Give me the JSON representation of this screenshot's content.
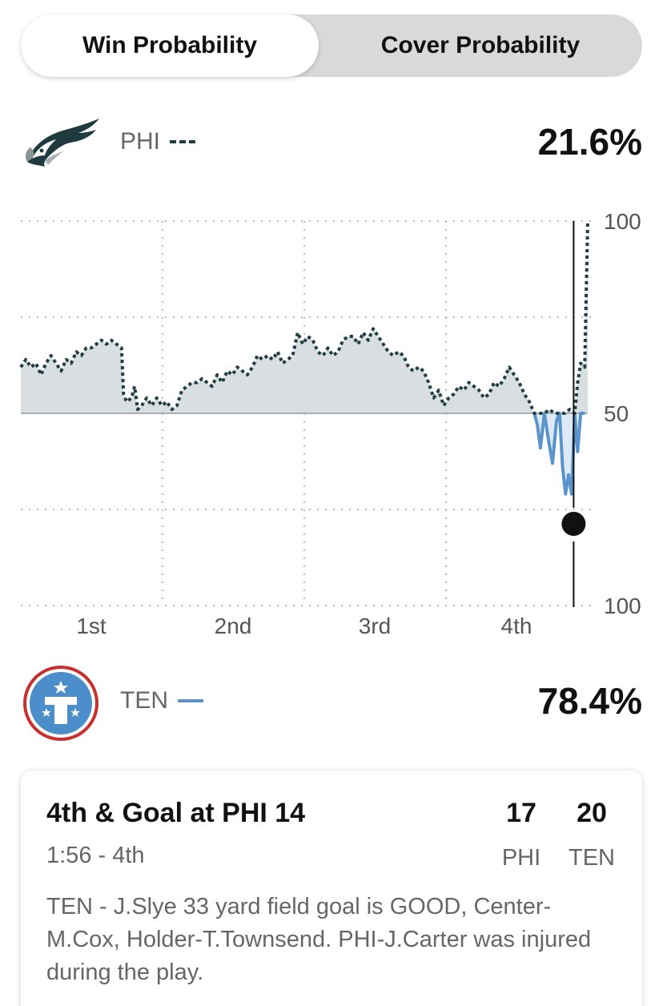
{
  "tabs": {
    "win_probability": "Win Probability",
    "cover_probability": "Cover Probability"
  },
  "teams": {
    "phi": {
      "abbr": "PHI",
      "win_pct": "21.6%",
      "line_style": "dashed",
      "color": "#1e3d44"
    },
    "ten": {
      "abbr": "TEN",
      "win_pct": "78.4%",
      "line_style": "solid",
      "color": "#5b93cb"
    }
  },
  "chart_data": {
    "type": "line",
    "y_axis_labels": [
      "100",
      "50",
      "100"
    ],
    "quarters": [
      "1st",
      "2nd",
      "3rd",
      "4th"
    ],
    "baseline": 50,
    "fill_color": "#d9dfe1",
    "series": [
      {
        "name": "PHI",
        "style": "dashed",
        "color": "#1e3d44",
        "points": [
          [
            0.0,
            62
          ],
          [
            0.5,
            64
          ],
          [
            1.0,
            62
          ],
          [
            1.5,
            63
          ],
          [
            2.0,
            60
          ],
          [
            2.5,
            63
          ],
          [
            3.0,
            65
          ],
          [
            3.5,
            63
          ],
          [
            4.0,
            61
          ],
          [
            4.5,
            64
          ],
          [
            5.0,
            63
          ],
          [
            5.5,
            66
          ],
          [
            6.0,
            65
          ],
          [
            6.5,
            67
          ],
          [
            7.0,
            67
          ],
          [
            7.5,
            68
          ],
          [
            8.0,
            69
          ],
          [
            8.5,
            68
          ],
          [
            9.0,
            69
          ],
          [
            9.5,
            68
          ],
          [
            10.0,
            67
          ],
          [
            10.2,
            55
          ],
          [
            10.5,
            53
          ],
          [
            11.0,
            54
          ],
          [
            11.3,
            57
          ],
          [
            11.6,
            51
          ],
          [
            12.0,
            52
          ],
          [
            12.5,
            54
          ],
          [
            13.0,
            52
          ],
          [
            13.5,
            54
          ],
          [
            14.0,
            52
          ],
          [
            14.5,
            53
          ],
          [
            15.0,
            51
          ],
          [
            15.5,
            52
          ],
          [
            16.0,
            56
          ],
          [
            16.5,
            57
          ],
          [
            17.0,
            58
          ],
          [
            17.5,
            58
          ],
          [
            18.0,
            59
          ],
          [
            18.5,
            58
          ],
          [
            19.0,
            57
          ],
          [
            19.5,
            60
          ],
          [
            20.0,
            58
          ],
          [
            20.5,
            61
          ],
          [
            21.0,
            60
          ],
          [
            21.5,
            62
          ],
          [
            22.0,
            61
          ],
          [
            22.5,
            60
          ],
          [
            23.0,
            62
          ],
          [
            23.5,
            65
          ],
          [
            24.0,
            64
          ],
          [
            24.5,
            65
          ],
          [
            25.0,
            64
          ],
          [
            25.5,
            66
          ],
          [
            26.0,
            63
          ],
          [
            26.5,
            64
          ],
          [
            27.0,
            65
          ],
          [
            27.5,
            71
          ],
          [
            28.0,
            68
          ],
          [
            28.5,
            70
          ],
          [
            29.0,
            69
          ],
          [
            29.5,
            66
          ],
          [
            30.0,
            65
          ],
          [
            30.5,
            67
          ],
          [
            31.0,
            65
          ],
          [
            31.5,
            66
          ],
          [
            32.0,
            69
          ],
          [
            32.5,
            70
          ],
          [
            33.0,
            70
          ],
          [
            33.5,
            68
          ],
          [
            34.0,
            71
          ],
          [
            34.5,
            69
          ],
          [
            35.0,
            72
          ],
          [
            35.5,
            70
          ],
          [
            36.0,
            68
          ],
          [
            36.5,
            66
          ],
          [
            37.0,
            65
          ],
          [
            37.5,
            66
          ],
          [
            38.0,
            65
          ],
          [
            38.5,
            62
          ],
          [
            39.0,
            61
          ],
          [
            39.5,
            62
          ],
          [
            40.0,
            61
          ],
          [
            40.5,
            58
          ],
          [
            41.0,
            54
          ],
          [
            41.5,
            56
          ],
          [
            42.0,
            52
          ],
          [
            42.5,
            54
          ],
          [
            43.0,
            55
          ],
          [
            43.5,
            57
          ],
          [
            44.0,
            56
          ],
          [
            44.5,
            58
          ],
          [
            45.0,
            57
          ],
          [
            45.5,
            56
          ],
          [
            46.0,
            54
          ],
          [
            46.5,
            55
          ],
          [
            47.0,
            58
          ],
          [
            47.5,
            57
          ],
          [
            48.0,
            59
          ],
          [
            48.5,
            62
          ],
          [
            49.0,
            60
          ],
          [
            49.5,
            58
          ],
          [
            50.0,
            55
          ],
          [
            50.5,
            53
          ],
          [
            51.0,
            50
          ],
          [
            52.0,
            50
          ],
          [
            52.5,
            51
          ],
          [
            53.0,
            50
          ],
          [
            53.5,
            50
          ],
          [
            54.0,
            50
          ],
          [
            54.5,
            51
          ],
          [
            55.0,
            50
          ],
          [
            55.3,
            58
          ],
          [
            55.6,
            63
          ],
          [
            56.0,
            62
          ],
          [
            56.3,
            100
          ]
        ]
      },
      {
        "name": "TEN",
        "style": "solid",
        "color": "#5b93cb",
        "points": [
          [
            51.0,
            50
          ],
          [
            51.3,
            47
          ],
          [
            51.6,
            41
          ],
          [
            52.0,
            50
          ],
          [
            52.4,
            43
          ],
          [
            52.8,
            37
          ],
          [
            53.2,
            48
          ],
          [
            53.5,
            50
          ],
          [
            53.8,
            36
          ],
          [
            54.1,
            29
          ],
          [
            54.4,
            34
          ],
          [
            54.7,
            29
          ],
          [
            55.0,
            50
          ],
          [
            55.3,
            40
          ],
          [
            55.6,
            50
          ],
          [
            56.0,
            50
          ]
        ]
      }
    ],
    "current_marker": {
      "x": 54.9,
      "y": 21.6
    }
  },
  "play": {
    "title": "4th & Goal at PHI 14",
    "clock": "1:56 - 4th",
    "score_phi": "17",
    "score_ten": "20",
    "label_phi": "PHI",
    "label_ten": "TEN",
    "description": "TEN - J.Slye 33 yard field goal is GOOD, Center-M.Cox, Holder-T.Townsend. PHI-J.Carter was injured during the play."
  }
}
